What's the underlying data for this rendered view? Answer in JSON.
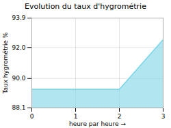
{
  "chart_data": {
    "type": "area",
    "title": "Evolution du taux d'hygrométrie",
    "xlabel": "heure par heure",
    "ylabel": "Taux hygrométrie %",
    "x": [
      0,
      2,
      3
    ],
    "values": [
      89.3,
      89.3,
      92.5
    ],
    "color": "#7dd6e8",
    "xlim": [
      0,
      3
    ],
    "ylim": [
      88.1,
      93.9
    ],
    "xticks": [
      0,
      1,
      2,
      3
    ],
    "yticks": [
      88.1,
      {
        "value": 90.0,
        "label": "90.0"
      },
      {
        "value": 92.0,
        "label": "92.0"
      },
      93.9
    ],
    "grid": true
  }
}
